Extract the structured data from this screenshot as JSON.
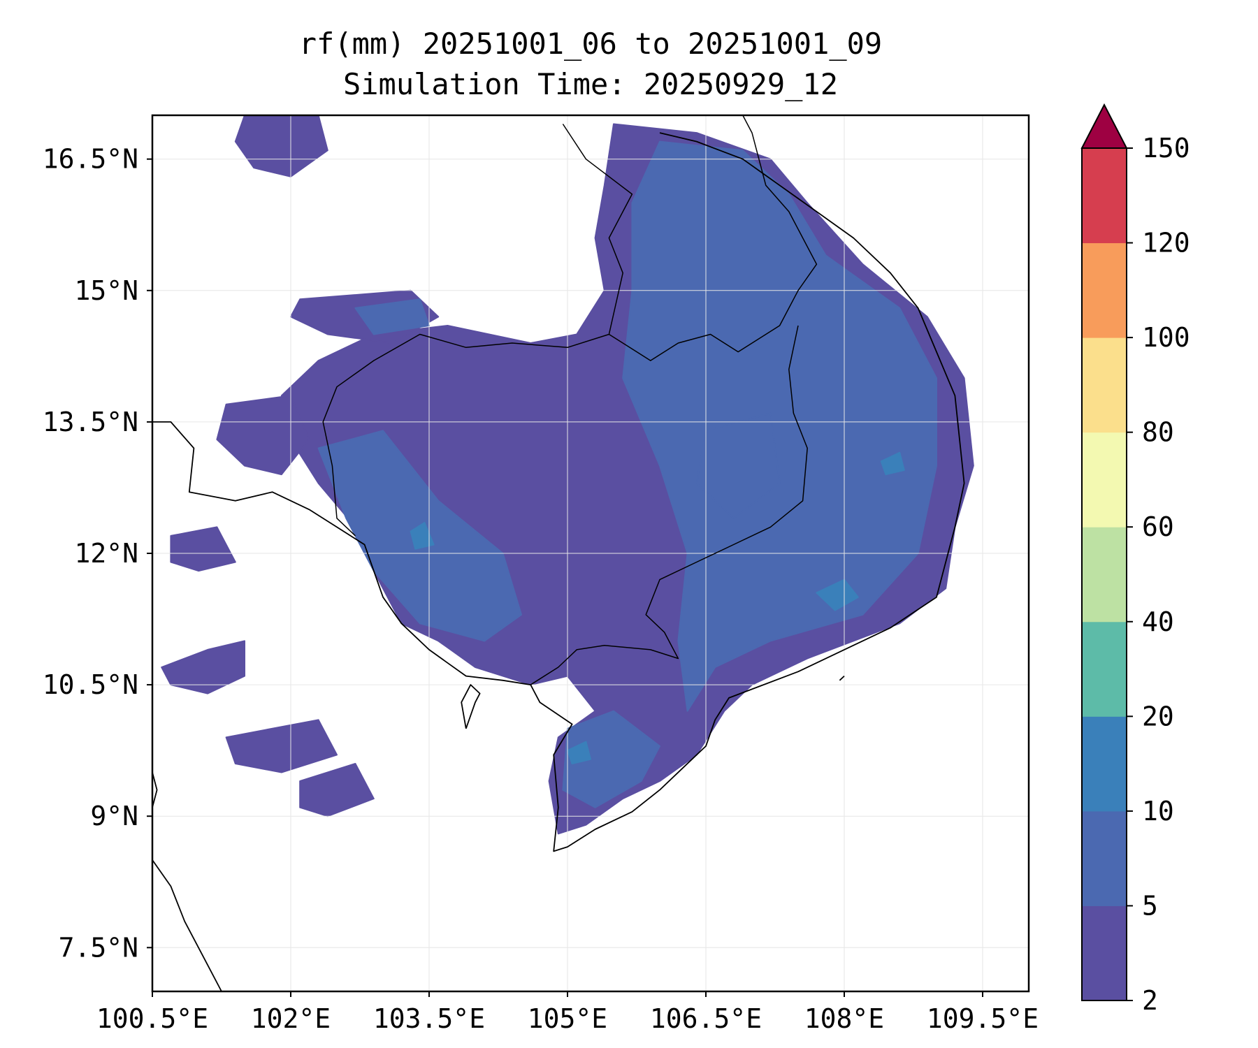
{
  "title": {
    "line1": "rf(mm) 20251001_06 to 20251001_09",
    "line2": "Simulation Time: 20250929_12"
  },
  "map": {
    "extent": {
      "lon_min": 100.5,
      "lon_max": 110.0,
      "lat_min": 7.0,
      "lat_max": 17.0
    },
    "lon_ticks": [
      {
        "value": 100.5,
        "label": "100.5°E"
      },
      {
        "value": 102.0,
        "label": "102°E"
      },
      {
        "value": 103.5,
        "label": "103.5°E"
      },
      {
        "value": 105.0,
        "label": "105°E"
      },
      {
        "value": 106.5,
        "label": "106.5°E"
      },
      {
        "value": 108.0,
        "label": "108°E"
      },
      {
        "value": 109.5,
        "label": "109.5°E"
      }
    ],
    "lat_ticks": [
      {
        "value": 16.5,
        "label": "16.5°N"
      },
      {
        "value": 15.0,
        "label": "15°N"
      },
      {
        "value": 13.5,
        "label": "13.5°N"
      },
      {
        "value": 12.0,
        "label": "12°N"
      },
      {
        "value": 10.5,
        "label": "10.5°N"
      },
      {
        "value": 9.0,
        "label": "9°N"
      },
      {
        "value": 7.5,
        "label": "7.5°N"
      }
    ],
    "rain_fields": [
      {
        "level": 0,
        "poly": [
          [
            105.5,
            16.9
          ],
          [
            106.4,
            16.8
          ],
          [
            107.2,
            16.5
          ],
          [
            107.6,
            16.0
          ],
          [
            108.2,
            15.3
          ],
          [
            108.9,
            14.7
          ],
          [
            109.3,
            14.0
          ],
          [
            109.4,
            13.0
          ],
          [
            109.2,
            12.3
          ],
          [
            109.1,
            11.6
          ],
          [
            108.6,
            11.2
          ],
          [
            107.6,
            10.8
          ],
          [
            107.0,
            10.5
          ],
          [
            106.7,
            10.2
          ],
          [
            106.4,
            9.7
          ],
          [
            106.0,
            9.4
          ],
          [
            105.6,
            9.2
          ],
          [
            105.2,
            8.9
          ],
          [
            104.9,
            8.8
          ],
          [
            104.8,
            9.4
          ],
          [
            104.9,
            9.9
          ],
          [
            105.3,
            10.2
          ],
          [
            105.0,
            10.6
          ],
          [
            104.6,
            10.5
          ],
          [
            104.0,
            10.7
          ],
          [
            103.6,
            11.0
          ],
          [
            103.2,
            11.2
          ],
          [
            102.9,
            11.8
          ],
          [
            102.7,
            12.3
          ],
          [
            102.3,
            12.8
          ],
          [
            102.0,
            13.3
          ],
          [
            101.9,
            13.8
          ],
          [
            102.3,
            14.2
          ],
          [
            102.9,
            14.5
          ],
          [
            103.7,
            14.6
          ],
          [
            104.6,
            14.4
          ],
          [
            105.1,
            14.5
          ],
          [
            105.4,
            15.0
          ],
          [
            105.3,
            15.6
          ],
          [
            105.4,
            16.2
          ]
        ]
      },
      {
        "level": 0,
        "poly": [
          [
            101.5,
            17.0
          ],
          [
            102.3,
            17.0
          ],
          [
            102.4,
            16.6
          ],
          [
            102.0,
            16.3
          ],
          [
            101.6,
            16.4
          ],
          [
            101.4,
            16.7
          ]
        ]
      },
      {
        "level": 0,
        "poly": [
          [
            102.1,
            14.9
          ],
          [
            103.3,
            15.0
          ],
          [
            103.6,
            14.7
          ],
          [
            103.1,
            14.4
          ],
          [
            102.4,
            14.5
          ],
          [
            102.0,
            14.7
          ]
        ]
      },
      {
        "level": 0,
        "poly": [
          [
            101.3,
            13.7
          ],
          [
            102.0,
            13.8
          ],
          [
            102.2,
            13.3
          ],
          [
            101.9,
            12.9
          ],
          [
            101.5,
            13.0
          ],
          [
            101.2,
            13.3
          ]
        ]
      },
      {
        "level": 0,
        "poly": [
          [
            100.6,
            10.7
          ],
          [
            101.1,
            10.9
          ],
          [
            101.5,
            11.0
          ],
          [
            101.5,
            10.6
          ],
          [
            101.1,
            10.4
          ],
          [
            100.7,
            10.5
          ]
        ]
      },
      {
        "level": 0,
        "poly": [
          [
            101.3,
            9.9
          ],
          [
            102.3,
            10.1
          ],
          [
            102.5,
            9.7
          ],
          [
            101.9,
            9.5
          ],
          [
            101.4,
            9.6
          ]
        ]
      },
      {
        "level": 0,
        "poly": [
          [
            102.1,
            9.4
          ],
          [
            102.7,
            9.6
          ],
          [
            102.9,
            9.2
          ],
          [
            102.4,
            9.0
          ],
          [
            102.1,
            9.1
          ]
        ]
      },
      {
        "level": 0,
        "poly": [
          [
            100.7,
            12.2
          ],
          [
            101.2,
            12.3
          ],
          [
            101.4,
            11.9
          ],
          [
            101.0,
            11.8
          ],
          [
            100.7,
            11.9
          ]
        ]
      },
      {
        "level": 1,
        "poly": [
          [
            106.0,
            16.7
          ],
          [
            106.9,
            16.6
          ],
          [
            107.4,
            16.1
          ],
          [
            107.8,
            15.4
          ],
          [
            108.6,
            14.8
          ],
          [
            109.0,
            14.0
          ],
          [
            109.0,
            13.0
          ],
          [
            108.8,
            12.0
          ],
          [
            108.2,
            11.3
          ],
          [
            107.2,
            11.0
          ],
          [
            106.6,
            10.7
          ],
          [
            106.3,
            10.2
          ],
          [
            106.2,
            11.0
          ],
          [
            106.3,
            12.0
          ],
          [
            106.0,
            13.0
          ],
          [
            105.6,
            14.0
          ],
          [
            105.7,
            15.0
          ],
          [
            105.7,
            16.0
          ]
        ]
      },
      {
        "level": 1,
        "poly": [
          [
            102.3,
            13.2
          ],
          [
            103.0,
            13.4
          ],
          [
            103.6,
            12.6
          ],
          [
            104.3,
            12.0
          ],
          [
            104.5,
            11.3
          ],
          [
            104.1,
            11.0
          ],
          [
            103.4,
            11.2
          ],
          [
            102.9,
            11.8
          ],
          [
            102.6,
            12.4
          ]
        ]
      },
      {
        "level": 1,
        "poly": [
          [
            105.0,
            10.0
          ],
          [
            105.5,
            10.2
          ],
          [
            106.0,
            9.8
          ],
          [
            105.8,
            9.4
          ],
          [
            105.3,
            9.1
          ],
          [
            104.95,
            9.3
          ]
        ]
      },
      {
        "level": 1,
        "poly": [
          [
            102.7,
            14.8
          ],
          [
            103.4,
            14.9
          ],
          [
            103.5,
            14.6
          ],
          [
            102.9,
            14.5
          ]
        ]
      },
      {
        "level": 1,
        "poly": [
          [
            106.5,
            13.4
          ],
          [
            107.2,
            13.6
          ],
          [
            107.3,
            12.8
          ],
          [
            106.8,
            12.4
          ],
          [
            106.4,
            12.8
          ]
        ]
      },
      {
        "level": 2,
        "poly": [
          [
            107.7,
            11.55
          ],
          [
            108.0,
            11.7
          ],
          [
            108.15,
            11.5
          ],
          [
            107.9,
            11.35
          ]
        ]
      },
      {
        "level": 2,
        "poly": [
          [
            103.3,
            12.25
          ],
          [
            103.45,
            12.35
          ],
          [
            103.55,
            12.1
          ],
          [
            103.35,
            12.05
          ]
        ]
      },
      {
        "level": 2,
        "poly": [
          [
            105.0,
            9.75
          ],
          [
            105.2,
            9.85
          ],
          [
            105.25,
            9.65
          ],
          [
            105.05,
            9.6
          ]
        ]
      },
      {
        "level": 2,
        "poly": [
          [
            108.4,
            13.05
          ],
          [
            108.6,
            13.15
          ],
          [
            108.65,
            12.95
          ],
          [
            108.45,
            12.9
          ]
        ]
      }
    ],
    "coastlines": [
      [
        [
          106.0,
          16.8
        ],
        [
          106.4,
          16.7
        ],
        [
          106.9,
          16.5
        ],
        [
          107.3,
          16.2
        ],
        [
          107.7,
          15.9
        ],
        [
          108.1,
          15.6
        ],
        [
          108.5,
          15.2
        ],
        [
          108.8,
          14.8
        ],
        [
          109.0,
          14.3
        ],
        [
          109.2,
          13.8
        ],
        [
          109.25,
          13.3
        ],
        [
          109.3,
          12.8
        ],
        [
          109.2,
          12.3
        ],
        [
          109.1,
          11.9
        ],
        [
          109.0,
          11.5
        ],
        [
          108.5,
          11.15
        ],
        [
          108.0,
          10.9
        ],
        [
          107.5,
          10.65
        ],
        [
          107.0,
          10.45
        ],
        [
          106.75,
          10.35
        ],
        [
          106.6,
          10.1
        ],
        [
          106.5,
          9.8
        ],
        [
          106.25,
          9.55
        ],
        [
          106.0,
          9.3
        ],
        [
          105.7,
          9.05
        ],
        [
          105.3,
          8.85
        ],
        [
          105.0,
          8.65
        ],
        [
          104.85,
          8.6
        ],
        [
          104.9,
          9.1
        ],
        [
          104.85,
          9.7
        ],
        [
          105.05,
          10.05
        ],
        [
          104.7,
          10.3
        ],
        [
          104.6,
          10.5
        ],
        [
          104.3,
          10.55
        ],
        [
          103.9,
          10.6
        ],
        [
          103.7,
          10.75
        ],
        [
          103.5,
          10.9
        ],
        [
          103.2,
          11.2
        ],
        [
          103.0,
          11.5
        ],
        [
          102.9,
          11.8
        ],
        [
          102.8,
          12.1
        ],
        [
          102.5,
          12.3
        ],
        [
          102.2,
          12.5
        ],
        [
          101.8,
          12.7
        ],
        [
          101.4,
          12.6
        ],
        [
          100.9,
          12.7
        ],
        [
          100.95,
          13.2
        ],
        [
          100.7,
          13.5
        ],
        [
          100.5,
          13.5
        ]
      ],
      [
        [
          100.5,
          8.5
        ],
        [
          100.7,
          8.2
        ],
        [
          100.85,
          7.8
        ],
        [
          101.05,
          7.4
        ],
        [
          101.25,
          7.0
        ]
      ],
      [
        [
          100.5,
          9.5
        ],
        [
          100.55,
          9.3
        ],
        [
          100.5,
          9.1
        ]
      ],
      [
        [
          107.95,
          10.55
        ],
        [
          108.0,
          10.6
        ]
      ],
      [
        [
          103.9,
          10.0
        ],
        [
          104.0,
          10.3
        ],
        [
          104.05,
          10.4
        ],
        [
          103.95,
          10.5
        ],
        [
          103.85,
          10.3
        ],
        [
          103.9,
          10.0
        ]
      ]
    ],
    "borders": [
      [
        [
          104.95,
          16.9
        ],
        [
          105.2,
          16.5
        ],
        [
          105.7,
          16.1
        ],
        [
          105.45,
          15.6
        ],
        [
          105.6,
          15.2
        ],
        [
          105.45,
          14.5
        ],
        [
          105.0,
          14.35
        ],
        [
          104.4,
          14.4
        ],
        [
          103.9,
          14.35
        ],
        [
          103.4,
          14.5
        ],
        [
          102.9,
          14.2
        ],
        [
          102.5,
          13.9
        ],
        [
          102.35,
          13.5
        ],
        [
          102.45,
          13.0
        ],
        [
          102.5,
          12.4
        ],
        [
          102.7,
          12.2
        ]
      ],
      [
        [
          105.45,
          14.5
        ],
        [
          105.9,
          14.2
        ],
        [
          106.2,
          14.4
        ],
        [
          106.55,
          14.5
        ],
        [
          106.85,
          14.3
        ],
        [
          107.3,
          14.6
        ],
        [
          107.5,
          15.0
        ],
        [
          107.7,
          15.3
        ],
        [
          107.4,
          15.9
        ],
        [
          107.15,
          16.2
        ],
        [
          107.0,
          16.8
        ],
        [
          106.9,
          17.0
        ]
      ],
      [
        [
          107.5,
          14.6
        ],
        [
          107.4,
          14.1
        ],
        [
          107.45,
          13.6
        ],
        [
          107.6,
          13.2
        ],
        [
          107.55,
          12.6
        ],
        [
          107.2,
          12.3
        ],
        [
          106.8,
          12.1
        ],
        [
          106.4,
          11.9
        ],
        [
          106.0,
          11.7
        ],
        [
          105.85,
          11.3
        ],
        [
          106.05,
          11.1
        ],
        [
          106.2,
          10.8
        ],
        [
          105.9,
          10.9
        ],
        [
          105.4,
          10.95
        ],
        [
          105.1,
          10.9
        ],
        [
          104.9,
          10.7
        ],
        [
          104.6,
          10.5
        ]
      ]
    ]
  },
  "colorbar": {
    "levels": [
      2,
      5,
      10,
      20,
      40,
      60,
      80,
      100,
      120,
      150
    ],
    "tick_labels": [
      "2",
      "5",
      "10",
      "20",
      "40",
      "60",
      "80",
      "100",
      "120",
      "150"
    ],
    "colors": [
      "#5a4fa1",
      "#4b69b1",
      "#3a80ba",
      "#5dbba8",
      "#bde1a3",
      "#f3f9b1",
      "#fbdf8c",
      "#f89c5b",
      "#d63e4f"
    ],
    "extend_color": "#9e0142"
  },
  "colors": {
    "coast": "#000000",
    "grid": "#e6e6e6"
  }
}
